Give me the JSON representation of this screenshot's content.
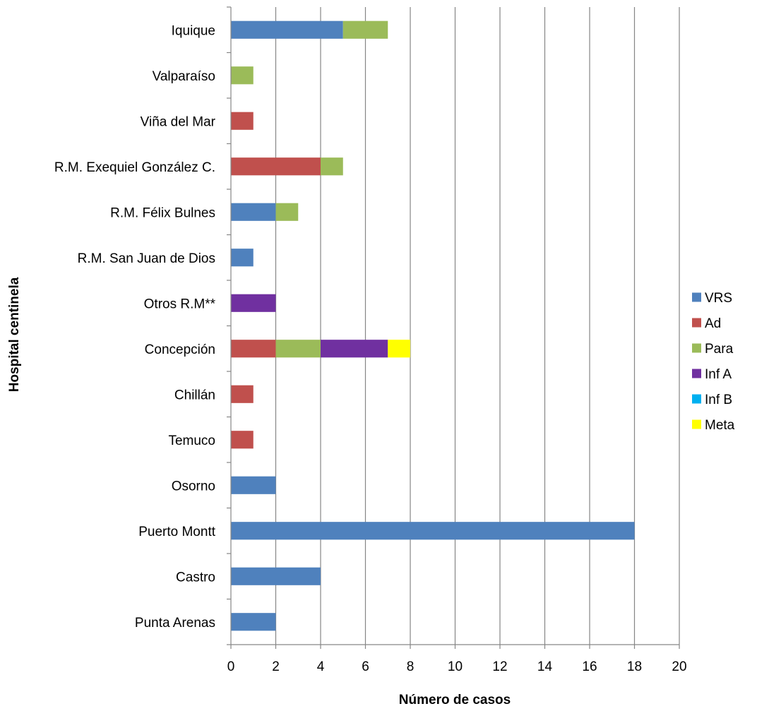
{
  "chart_data": {
    "type": "bar",
    "orientation": "horizontal",
    "stacked": true,
    "categories": [
      "Iquique",
      "Valparaíso",
      "Viña del Mar",
      "R.M. Exequiel González C.",
      "R.M. Félix Bulnes",
      "R.M. San Juan de Dios",
      "Otros R.M**",
      "Concepción",
      "Chillán",
      "Temuco",
      "Osorno",
      "Puerto Montt",
      "Castro",
      "Punta Arenas"
    ],
    "series": [
      {
        "name": "VRS",
        "color": "#4F81BD",
        "values": [
          5,
          0,
          0,
          0,
          2,
          1,
          0,
          0,
          0,
          0,
          2,
          18,
          4,
          2
        ]
      },
      {
        "name": "Ad",
        "color": "#C0504D",
        "values": [
          0,
          0,
          1,
          4,
          0,
          0,
          0,
          2,
          1,
          1,
          0,
          0,
          0,
          0
        ]
      },
      {
        "name": "Para",
        "color": "#9BBB59",
        "values": [
          2,
          1,
          0,
          1,
          1,
          0,
          0,
          2,
          0,
          0,
          0,
          0,
          0,
          0
        ]
      },
      {
        "name": "Inf A",
        "color": "#7030A0",
        "values": [
          0,
          0,
          0,
          0,
          0,
          0,
          2,
          3,
          0,
          0,
          0,
          0,
          0,
          0
        ]
      },
      {
        "name": "Inf B",
        "color": "#00B0F0",
        "values": [
          0,
          0,
          0,
          0,
          0,
          0,
          0,
          0,
          0,
          0,
          0,
          0,
          0,
          0
        ]
      },
      {
        "name": "Meta",
        "color": "#FFFF00",
        "values": [
          0,
          0,
          0,
          0,
          0,
          0,
          0,
          1,
          0,
          0,
          0,
          0,
          0,
          0
        ]
      }
    ],
    "xlabel": "Número de casos",
    "ylabel": "Hospital  centinela",
    "xlim": [
      0,
      20
    ],
    "xticks": [
      0,
      2,
      4,
      6,
      8,
      10,
      12,
      14,
      16,
      18,
      20
    ],
    "grid": "vertical",
    "legend": "right"
  }
}
